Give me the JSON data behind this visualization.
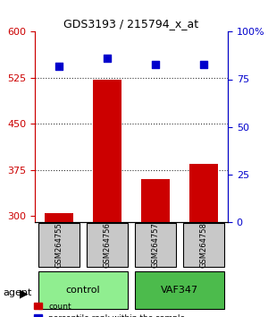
{
  "title": "GDS3193 / 215794_x_at",
  "samples": [
    "GSM264755",
    "GSM264756",
    "GSM264757",
    "GSM264758"
  ],
  "bar_values": [
    305,
    522,
    360,
    385
  ],
  "percentile_values": [
    82,
    86,
    83,
    83
  ],
  "ylim_left": [
    290,
    600
  ],
  "ylim_right": [
    0,
    100
  ],
  "yticks_left": [
    300,
    375,
    450,
    525,
    600
  ],
  "yticks_right": [
    0,
    25,
    50,
    75,
    100
  ],
  "bar_color": "#cc0000",
  "percentile_color": "#0000cc",
  "bar_width": 0.6,
  "groups": [
    {
      "label": "control",
      "samples": [
        0,
        1
      ],
      "color": "#90ee90"
    },
    {
      "label": "VAF347",
      "samples": [
        2,
        3
      ],
      "color": "#4cbb4c"
    }
  ],
  "group_row_label": "agent",
  "sample_box_color": "#c8c8c8",
  "dotted_line_color": "#333333",
  "title_color": "#000000",
  "left_axis_color": "#cc0000",
  "right_axis_color": "#0000cc"
}
